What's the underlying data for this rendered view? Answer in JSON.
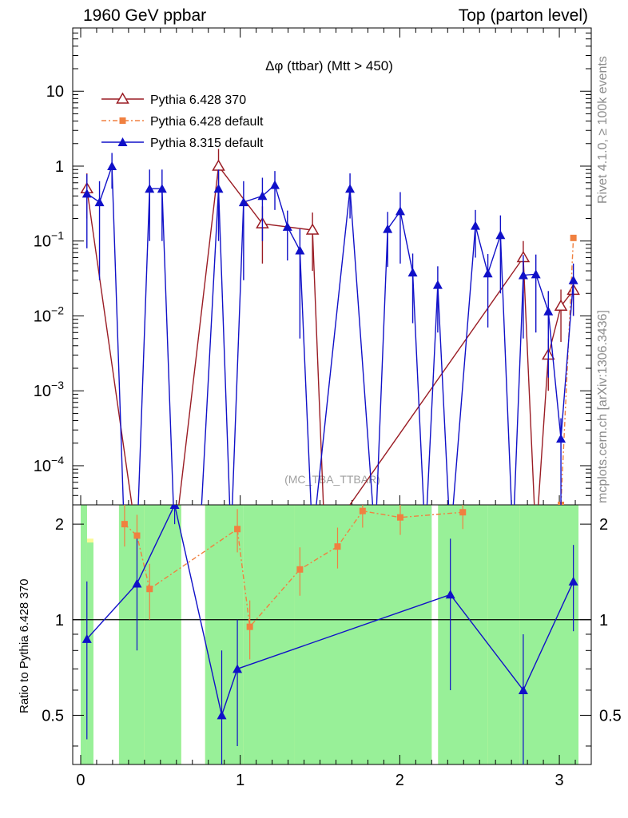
{
  "header": {
    "left": "1960 GeV ppbar",
    "right": "Top (parton level)"
  },
  "side_text": {
    "rivet": "Rivet 4.1.0, ≥ 100k events",
    "mcplots": "mcplots.cern.ch [arXiv:1306.3436]"
  },
  "chart_data": [
    {
      "type": "line",
      "title": "Δφ (ttbar) (Mtt > 450)",
      "watermark": "(MC_TBA_TTBAR)",
      "xlim": [
        -0.05,
        3.2
      ],
      "ylim": [
        3e-05,
        70
      ],
      "yscale": "log",
      "y_ticks": [
        {
          "v": 10,
          "label": "10"
        },
        {
          "v": 1,
          "label": "1"
        },
        {
          "v": 0.1,
          "label": "10−1"
        },
        {
          "v": 0.01,
          "label": "10−2"
        },
        {
          "v": 0.001,
          "label": "10−3"
        },
        {
          "v": 0.0001,
          "label": "10−4"
        }
      ],
      "legend_position": "top-left",
      "series": [
        {
          "name": "Pythia 6.428 370",
          "color": "#9a1c24",
          "marker": "open-triangle",
          "points": [
            [
              0.039,
              0.5,
              0.3
            ],
            [
              0.353,
              1e-05,
              0
            ],
            [
              0.589,
              1e-05,
              0
            ],
            [
              0.864,
              1.0,
              0.7
            ],
            [
              1.139,
              0.17,
              0.12
            ],
            [
              1.453,
              0.14,
              0.1
            ],
            [
              1.53,
              1e-05,
              0
            ],
            [
              2.774,
              0.06,
              0.04
            ],
            [
              2.853,
              1e-05,
              0
            ],
            [
              2.931,
              0.003,
              0.002
            ],
            [
              3.01,
              0.0135,
              0.009
            ],
            [
              3.088,
              0.022,
              0.012
            ]
          ]
        },
        {
          "name": "Pythia 6.428 default",
          "color": "#f08040",
          "marker": "filled-square",
          "points": [
            [
              3.01,
              3e-05,
              0
            ],
            [
              3.088,
              0.11,
              0
            ]
          ]
        },
        {
          "name": "Pythia 8.315 default",
          "color": "#1010c8",
          "marker": "filled-triangle",
          "points": [
            [
              0.039,
              0.43,
              0.35
            ],
            [
              0.118,
              0.33,
              0.3
            ],
            [
              0.196,
              1.0,
              0.5
            ],
            [
              0.275,
              1e-05,
              0
            ],
            [
              0.353,
              1e-05,
              0
            ],
            [
              0.432,
              0.5,
              0.4
            ],
            [
              0.51,
              0.5,
              0.4
            ],
            [
              0.589,
              1e-05,
              0
            ],
            [
              0.746,
              1e-05,
              0
            ],
            [
              0.864,
              0.5,
              0.4
            ],
            [
              0.942,
              1e-05,
              0
            ],
            [
              1.021,
              0.33,
              0.3
            ],
            [
              1.139,
              0.4,
              0.3
            ],
            [
              1.217,
              0.56,
              0.3
            ],
            [
              1.296,
              0.155,
              0.1
            ],
            [
              1.374,
              0.075,
              0.07
            ],
            [
              1.453,
              1e-05,
              0
            ],
            [
              1.688,
              0.5,
              0.3
            ],
            [
              1.846,
              1e-05,
              0
            ],
            [
              1.924,
              0.145,
              0.1
            ],
            [
              2.003,
              0.25,
              0.2
            ],
            [
              2.081,
              0.038,
              0.03
            ],
            [
              2.16,
              1e-05,
              0
            ],
            [
              2.238,
              0.026,
              0.02
            ],
            [
              2.317,
              1e-05,
              0
            ],
            [
              2.474,
              0.16,
              0.1
            ],
            [
              2.552,
              0.037,
              0.03
            ],
            [
              2.631,
              0.12,
              0.1
            ],
            [
              2.709,
              1e-05,
              0
            ],
            [
              2.774,
              0.035,
              0.03
            ],
            [
              2.853,
              0.036,
              0.03
            ],
            [
              2.931,
              0.0115,
              0.01
            ],
            [
              3.01,
              0.00023,
              0.0002
            ],
            [
              3.088,
              0.03,
              0.02
            ]
          ]
        }
      ]
    },
    {
      "type": "line",
      "ylabel": "Ratio to Pythia 6.428 370",
      "xlim": [
        -0.05,
        3.2
      ],
      "ylim": [
        0.35,
        2.3
      ],
      "yscale": "log",
      "x_ticks": [
        {
          "v": 0,
          "label": "0"
        },
        {
          "v": 1,
          "label": "1"
        },
        {
          "v": 2,
          "label": "2"
        },
        {
          "v": 3,
          "label": "3"
        }
      ],
      "y_ticks": [
        {
          "v": 2,
          "label": "2"
        },
        {
          "v": 1,
          "label": "1"
        },
        {
          "v": 0.5,
          "label": "0.5"
        }
      ],
      "reference_line": 1,
      "band_colors": {
        "inner": "#98f098",
        "outer": "#fafa96"
      },
      "bands": [
        [
          0.0,
          0.04,
          0.25,
          0.99,
          2.3
        ],
        [
          0.04,
          0.08,
          0.3,
          0.35,
          1.8
        ],
        [
          0.24,
          0.4,
          0.3,
          0.99,
          2.3
        ],
        [
          0.4,
          0.63,
          0.3,
          0.99,
          2.3
        ],
        [
          0.78,
          1.02,
          0.3,
          0.99,
          2.3
        ],
        [
          1.02,
          1.34,
          0.3,
          0.99,
          1.95
        ],
        [
          1.34,
          1.57,
          0.3,
          0.99,
          2.3
        ],
        [
          1.57,
          2.2,
          0.3,
          0.99,
          1.95
        ],
        [
          2.24,
          2.55,
          0.3,
          0.99,
          2.3
        ],
        [
          2.55,
          2.75,
          0.3,
          0.99,
          1.8
        ],
        [
          2.75,
          3.12,
          0.3,
          0.99,
          2.3
        ]
      ],
      "series": [
        {
          "name": "Pythia 6.428 default",
          "color": "#f08040",
          "marker": "filled-square",
          "points": [
            [
              0.275,
              2.0,
              0.3
            ],
            [
              0.353,
              1.84,
              0.3
            ],
            [
              0.432,
              1.25,
              0.25
            ],
            [
              0.982,
              1.93,
              0.3
            ],
            [
              1.06,
              0.95,
              0.2
            ],
            [
              1.374,
              1.44,
              0.25
            ],
            [
              1.61,
              1.7,
              0.25
            ],
            [
              1.767,
              2.2,
              0.25
            ],
            [
              2.003,
              2.1,
              0.25
            ],
            [
              2.395,
              2.18,
              0.25
            ]
          ]
        },
        {
          "name": "Pythia 8.315 default",
          "color": "#1010c8",
          "marker": "filled-triangle",
          "points": [
            [
              0.039,
              0.87,
              0.45
            ],
            [
              0.353,
              1.3,
              0.5
            ],
            [
              0.589,
              2.3,
              0.3
            ],
            [
              0.884,
              0.5,
              0.3
            ],
            [
              0.982,
              0.7,
              0.3
            ],
            [
              2.317,
              1.2,
              0.6
            ],
            [
              2.774,
              0.6,
              0.3
            ],
            [
              3.088,
              1.32,
              0.4
            ]
          ]
        }
      ]
    }
  ]
}
